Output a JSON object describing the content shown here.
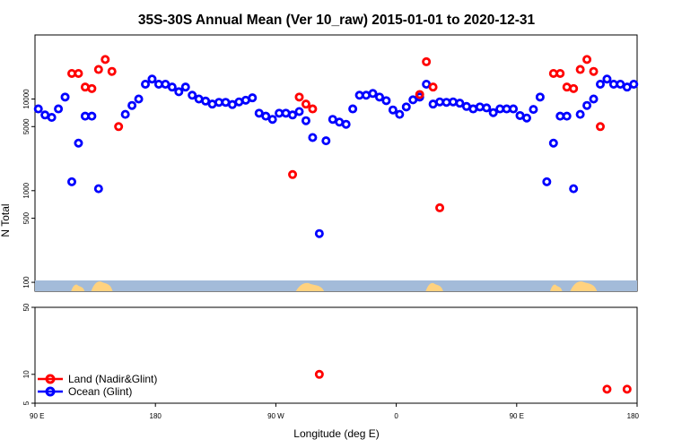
{
  "chart_data": {
    "type": "scatter",
    "title": "35S-30S Annual Mean (Ver 10_raw)   2015-01-01 to 2020-12-31",
    "xlabel": "Longitude (deg E)",
    "ylabel": "N Total",
    "x_scale": "longitude",
    "y_scale": "log",
    "xlim": [
      90,
      540
    ],
    "x_ticks": [
      {
        "value": 90,
        "label": "90 E"
      },
      {
        "value": 180,
        "label": "180"
      },
      {
        "value": 270,
        "label": "90 W"
      },
      {
        "value": 360,
        "label": "0"
      },
      {
        "value": 450,
        "label": "90 E"
      },
      {
        "value": 540,
        "label": "180"
      }
    ],
    "y_ticks_upper": [
      100,
      500,
      1000,
      5000,
      10000
    ],
    "y_ticks_lower": [
      5,
      10,
      50
    ],
    "ylim_upper": [
      80,
      50000
    ],
    "ylim_lower": [
      5,
      50
    ],
    "grid": false,
    "legend_position": "bottom-left",
    "colors": {
      "land": "#ff0000",
      "ocean": "#0000ff",
      "land_strip": "#ffd27f",
      "sea_strip": "#a3bbd9"
    },
    "series": [
      {
        "name": "Land (Nadir&Glint)",
        "color": "#ff0000",
        "x": [
          117.5,
          122.5,
          127.5,
          132.5,
          137.5,
          142.5,
          147.5,
          152.5,
          282.5,
          287.5,
          292.5,
          297.5,
          302.5,
          377.5,
          382.5,
          387.5,
          392.5,
          477.5,
          482.5,
          487.5,
          492.5,
          497.5,
          502.5,
          507.5,
          512.5,
          517.5,
          532.5
        ],
        "y": [
          19000,
          19000,
          13500,
          13000,
          21000,
          27000,
          20000,
          5000,
          1500,
          10500,
          8800,
          7800,
          10,
          11200,
          25500,
          13500,
          650,
          19000,
          19000,
          13500,
          13000,
          21000,
          27000,
          20000,
          5000,
          7,
          7
        ]
      },
      {
        "name": "Ocean (Glint)",
        "color": "#0000ff",
        "x": [
          92.5,
          97.5,
          102.5,
          107.5,
          112.5,
          117.5,
          122.5,
          127.5,
          132.5,
          137.5,
          157.5,
          162.5,
          167.5,
          172.5,
          177.5,
          182.5,
          187.5,
          192.5,
          197.5,
          202.5,
          207.5,
          212.5,
          217.5,
          222.5,
          227.5,
          232.5,
          237.5,
          242.5,
          247.5,
          252.5,
          257.5,
          262.5,
          267.5,
          272.5,
          277.5,
          282.5,
          287.5,
          292.5,
          297.5,
          302.5,
          307.5,
          312.5,
          317.5,
          322.5,
          327.5,
          332.5,
          337.5,
          342.5,
          347.5,
          352.5,
          357.5,
          362.5,
          367.5,
          372.5,
          377.5,
          382.5,
          387.5,
          392.5,
          397.5,
          402.5,
          407.5,
          412.5,
          417.5,
          422.5,
          427.5,
          432.5,
          437.5,
          442.5,
          447.5,
          452.5,
          457.5,
          462.5,
          467.5,
          472.5,
          477.5,
          482.5,
          487.5,
          492.5,
          497.5,
          502.5,
          507.5,
          512.5,
          517.5,
          522.5,
          527.5,
          532.5,
          537.5
        ],
        "y": [
          7800,
          6700,
          6300,
          7800,
          10500,
          1250,
          3300,
          6500,
          6500,
          1050,
          6800,
          8500,
          10000,
          14500,
          16500,
          14500,
          14500,
          13500,
          12000,
          13500,
          11000,
          10000,
          9500,
          8800,
          9200,
          9200,
          8700,
          9300,
          9700,
          10300,
          7000,
          6500,
          6000,
          7000,
          7000,
          6700,
          7300,
          5800,
          3800,
          340,
          3500,
          6000,
          5600,
          5300,
          7800,
          11000,
          11000,
          11500,
          10500,
          9600,
          7600,
          6800,
          8200,
          9800,
          10500,
          14500,
          8800,
          9300,
          9200,
          9300,
          9000,
          8300,
          7800,
          8200,
          8000,
          7100,
          7800,
          7800,
          7800,
          6600,
          6200,
          7700,
          10500,
          1250,
          3300,
          6500,
          6500,
          1050,
          6800,
          8500,
          10000,
          14500,
          16500,
          14500,
          14500,
          13500,
          14500
        ]
      }
    ],
    "land_segments": [
      [
        117,
        127,
        "mid"
      ],
      [
        132,
        148,
        "high"
      ],
      [
        285,
        306,
        "low"
      ],
      [
        382,
        395,
        "low"
      ],
      [
        475,
        484,
        "mid"
      ],
      [
        490,
        510,
        "high"
      ]
    ]
  }
}
